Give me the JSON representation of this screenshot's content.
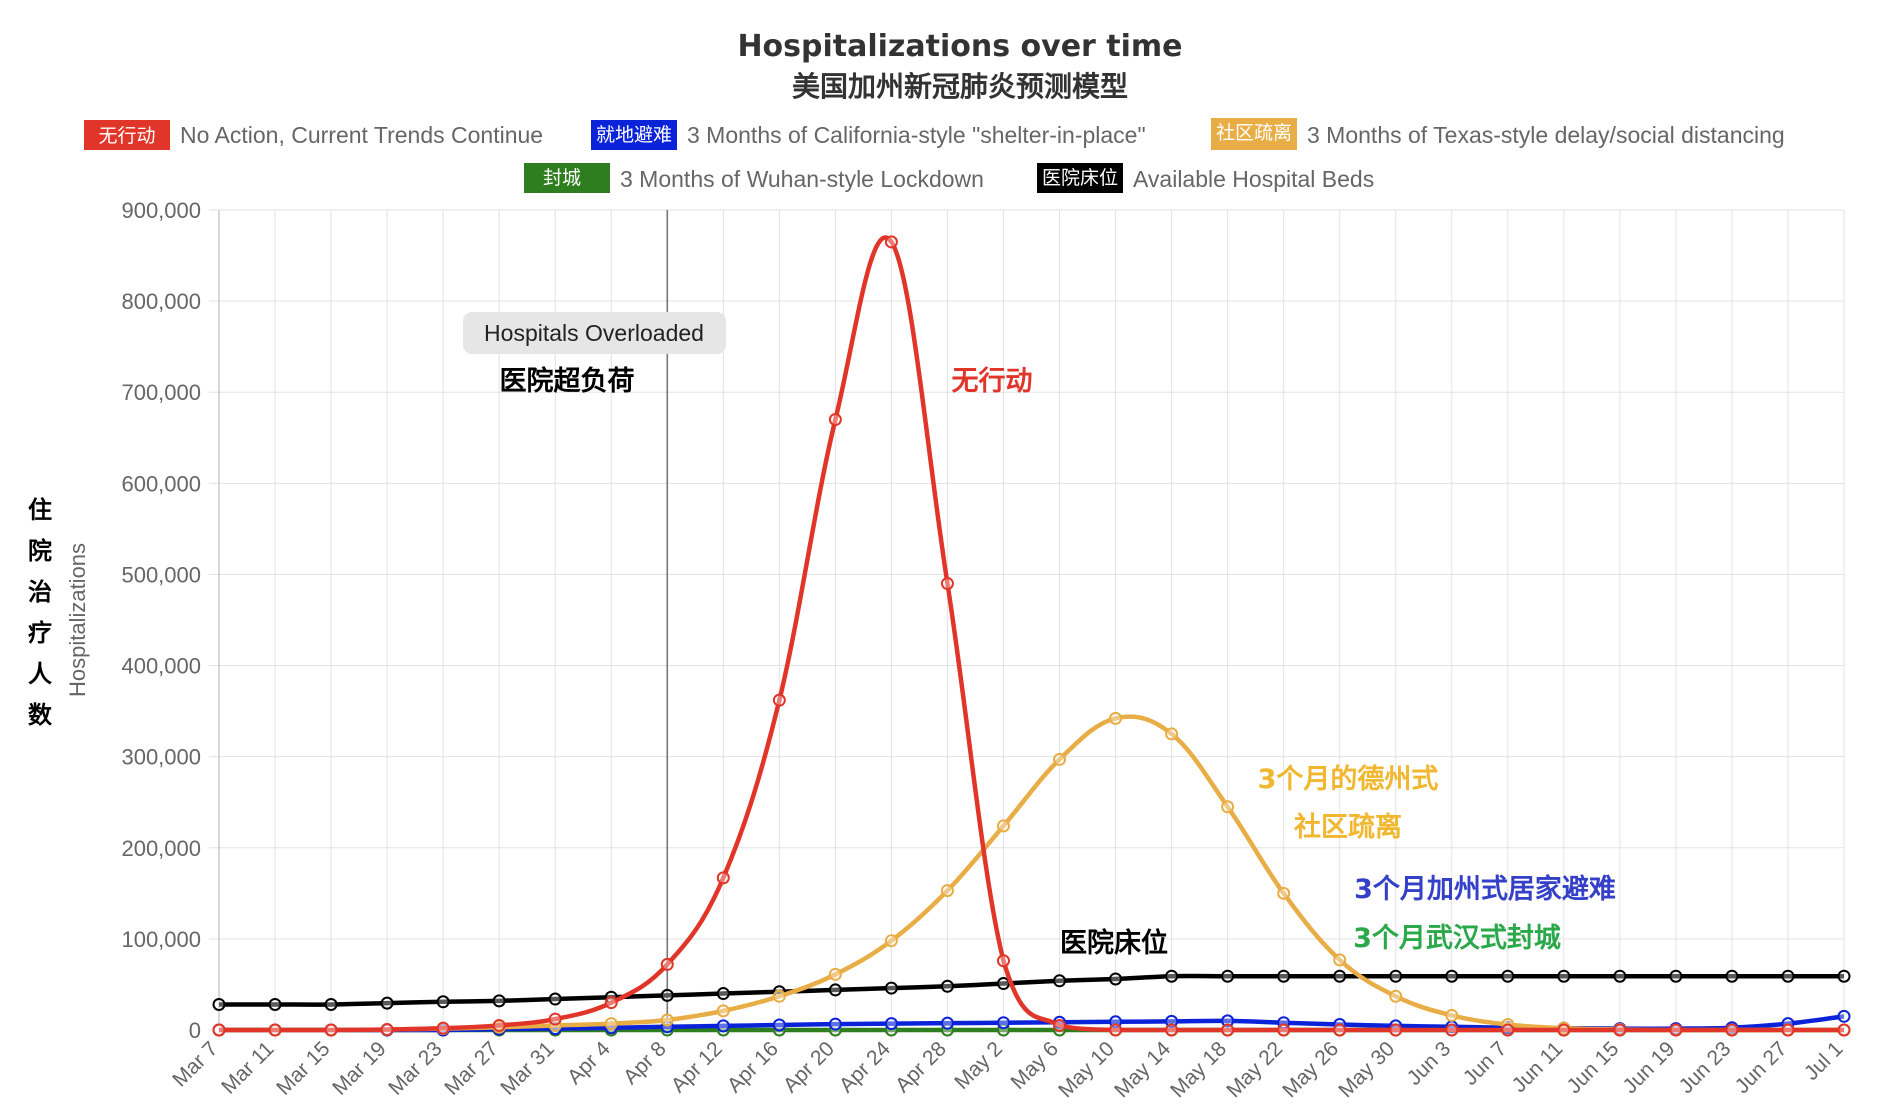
{
  "title": "Hospitalizations over time",
  "subtitle": "美国加州新冠肺炎预测模型",
  "legend": [
    {
      "tag": "无行动",
      "label": "No Action, Current Trends Continue",
      "color": "#e03528"
    },
    {
      "tag": "就地避难",
      "label": "3 Months of California-style \"shelter-in-place\"",
      "color": "#0a22d8"
    },
    {
      "tag": "社区疏离",
      "label": "3 Months of Texas-style delay/social distancing",
      "color": "#e8ad45"
    },
    {
      "tag": "封城",
      "label": "3 Months of Wuhan-style Lockdown",
      "color": "#2e7d1e"
    },
    {
      "tag": "医院床位",
      "label": "Available Hospital Beds",
      "color": "#000000"
    }
  ],
  "annotations": {
    "overload_label": "Hospitals Overloaded",
    "overload_cn": "医院超负荷",
    "no_action_cn": "无行动",
    "texas_cn_line1": "3个月的德州式",
    "texas_cn_line2": "社区疏离",
    "beds_cn": "医院床位",
    "california_cn": "3个月加州式居家避难",
    "wuhan_cn": "3个月武汉式封城"
  },
  "axes": {
    "y_title": "Hospitalizations",
    "y_title_cn": [
      "住",
      "院",
      "治",
      "疗",
      "人",
      "数"
    ]
  },
  "chart_data": {
    "type": "line",
    "title": "Hospitalizations over time",
    "subtitle": "美国加州新冠肺炎预测模型",
    "ylabel": "Hospitalizations",
    "xlabel": "",
    "ylim": [
      0,
      900000
    ],
    "y_ticks": [
      "0",
      "100,000",
      "200,000",
      "300,000",
      "400,000",
      "500,000",
      "600,000",
      "700,000",
      "800,000",
      "900,000"
    ],
    "x_tick_labels": [
      "Mar 7",
      "Mar 11",
      "Mar 15",
      "Mar 19",
      "Mar 23",
      "Mar 27",
      "Mar 31",
      "Apr 4",
      "Apr 8",
      "Apr 12",
      "Apr 16",
      "Apr 20",
      "Apr 24",
      "Apr 28",
      "May 2",
      "May 6",
      "May 10",
      "May 14",
      "May 18",
      "May 22",
      "May 26",
      "May 30",
      "Jun 3",
      "Jun 7",
      "Jun 11",
      "Jun 15",
      "Jun 19",
      "Jun 23",
      "Jun 27",
      "Jul 1"
    ],
    "grid": true,
    "legend_position": "top",
    "overload_marker_x": "Apr 8",
    "series": [
      {
        "name": "No Action, Current Trends Continue",
        "color": "#e03528",
        "values": [
          0,
          0,
          0,
          500,
          2000,
          5000,
          12000,
          30000,
          72000,
          167000,
          362000,
          670000,
          865000,
          490000,
          76000,
          5000,
          0,
          0,
          0,
          0,
          0,
          0,
          0,
          0,
          0,
          0,
          0,
          0,
          0,
          0
        ]
      },
      {
        "name": "3 Months of California-style \"shelter-in-place\"",
        "color": "#0a22d8",
        "values": [
          0,
          0,
          0,
          0,
          0,
          1000,
          1500,
          2500,
          3500,
          4500,
          5500,
          6500,
          7000,
          7500,
          8000,
          8500,
          9000,
          9500,
          10000,
          8000,
          6000,
          4500,
          3500,
          2500,
          2000,
          1500,
          1500,
          2500,
          7000,
          15000
        ]
      },
      {
        "name": "3 Months of Texas-style delay/social distancing",
        "color": "#e8ad45",
        "values": [
          0,
          0,
          0,
          500,
          1500,
          3000,
          5000,
          7000,
          11000,
          21000,
          37000,
          61000,
          98000,
          153000,
          224000,
          297000,
          342000,
          325000,
          245000,
          150000,
          77000,
          37000,
          16000,
          6000,
          2000,
          500,
          0,
          0,
          0,
          0
        ]
      },
      {
        "name": "3 Months of Wuhan-style Lockdown",
        "color": "#2e7d1e",
        "values": [
          0,
          0,
          0,
          0,
          0,
          0,
          0,
          0,
          0,
          0,
          0,
          0,
          0,
          0,
          0,
          0,
          0,
          0,
          0,
          0,
          0,
          0,
          0,
          0,
          0,
          0,
          0,
          0,
          0,
          0
        ]
      },
      {
        "name": "Available Hospital Beds",
        "color": "#000000",
        "values": [
          28000,
          28000,
          28000,
          29500,
          31000,
          32000,
          34000,
          36000,
          38000,
          40000,
          42000,
          44000,
          46000,
          48000,
          51000,
          54000,
          56000,
          59000,
          59000,
          59000,
          59000,
          59000,
          59000,
          59000,
          59000,
          59000,
          59000,
          59000,
          59000,
          59000
        ]
      }
    ]
  }
}
